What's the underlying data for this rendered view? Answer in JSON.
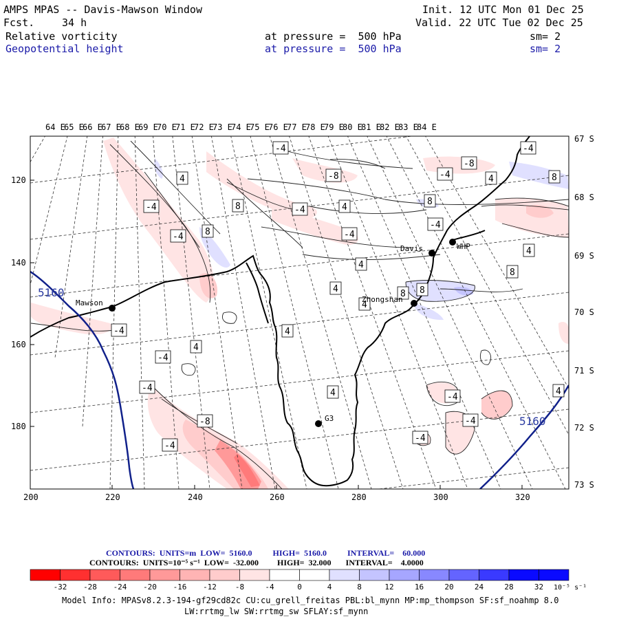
{
  "header": {
    "model_line": "AMPS MPAS -- Davis-Mawson Window",
    "fcst_label": "Fcst.",
    "fcst_value": "34 h",
    "init": "Init. 12 UTC Mon 01 Dec 25",
    "valid": "Valid. 22 UTC Tue 02 Dec 25",
    "field1": "Relative vorticity",
    "field1_level": "at pressure =  500 hPa",
    "field1_sm": "sm= 2",
    "field2": "Geopotential height",
    "field2_level": "at pressure =  500 hPa",
    "field2_sm": "sm= 2"
  },
  "top_lon_labels": [
    "64 E",
    "65 E",
    "66 E",
    "67 E",
    "68 E",
    "69 E",
    "70 E",
    "71 E",
    "72 E",
    "73 E",
    "74 E",
    "75 E",
    "76 E",
    "77 E",
    "78 E",
    "79 E",
    "80 E",
    "81 E",
    "82 E",
    "83 E",
    "84 E"
  ],
  "right_lat_labels": [
    "67 S",
    "68 S",
    "69 S",
    "70 S",
    "71 S",
    "72 S",
    "73 S"
  ],
  "x_ticks": [
    "200",
    "220",
    "240",
    "260",
    "280",
    "300",
    "320"
  ],
  "y_ticks": [
    "120",
    "140",
    "160",
    "180"
  ],
  "stations": [
    {
      "name": "Mawson"
    },
    {
      "name": "Davis"
    },
    {
      "name": "WHP"
    },
    {
      "name": "Zhongshan"
    },
    {
      "name": "G3"
    }
  ],
  "contour_labels": [
    "-4",
    "-8",
    "4",
    "8",
    "5160"
  ],
  "contour_info": {
    "line1": "CONTOURS:  UNITS=m  LOW=  5160.0          HIGH=  5160.0          INTERVAL=    60.000",
    "line2": "CONTOURS:  UNITS=10⁻⁵ s⁻¹  LOW=  -32.000         HIGH=  32.000       INTERVAL=    4.0000"
  },
  "colorbar": {
    "labels": [
      "-32",
      "-28",
      "-24",
      "-20",
      "-16",
      "-12",
      "-8",
      "-4",
      "0",
      "4",
      "8",
      "12",
      "16",
      "20",
      "24",
      "28",
      "32"
    ],
    "units": "10⁻⁵ s⁻¹",
    "colors": [
      "#ff0000",
      "#ff3030",
      "#ff5a5a",
      "#ff7a7a",
      "#ff9999",
      "#ffb4b4",
      "#ffcccc",
      "#ffe4e4",
      "#ffffff",
      "#ffffff",
      "#e0e0ff",
      "#c4c4ff",
      "#a6a6ff",
      "#8888ff",
      "#6464ff",
      "#3a3aff",
      "#0a0aff"
    ]
  },
  "model_info": {
    "line1": "Model Info: MPASv8.2.3-194-gf29cd82c CU:cu_grell_freitas PBL:bl_mynn MP:mp_thompson SF:sf_noahmp 8.0",
    "line2": "LW:rrtmg_lw SW:rrtmg_sw SFLAY:sf_mynn"
  }
}
